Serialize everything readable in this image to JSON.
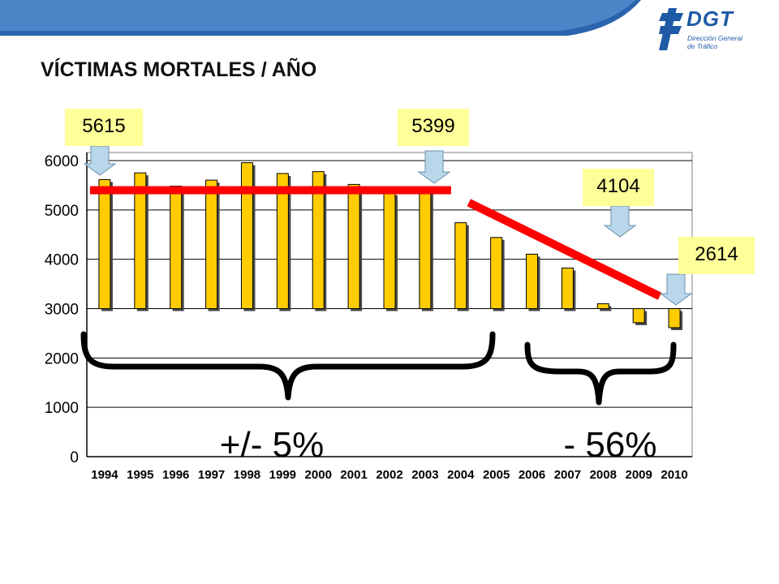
{
  "page": {
    "title": "VÍCTIMAS MORTALES / AÑO",
    "logo": {
      "name": "DGT",
      "line1": "Dirección General",
      "line2": "de Tráfico"
    }
  },
  "callouts": [
    "5615",
    "5399",
    "4104",
    "2614"
  ],
  "annotations": {
    "left_range": "+/- 5%",
    "right_range": "- 56%"
  },
  "colors": {
    "bar": "#ffcc00",
    "trend": "#ff0000",
    "arrow": "#b9d7ea",
    "callout_bg": "#ffff99",
    "brand": "#1f5aa6"
  },
  "chart_data": {
    "type": "bar",
    "title": "VÍCTIMAS MORTALES / AÑO",
    "xlabel": "",
    "ylabel": "",
    "ylim": [
      0,
      6000
    ],
    "yticks": [
      0,
      1000,
      2000,
      3000,
      4000,
      5000,
      6000
    ],
    "bar_baseline": 3000,
    "categories": [
      "1994",
      "1995",
      "1996",
      "1997",
      "1998",
      "1999",
      "2000",
      "2001",
      "2002",
      "2003",
      "2004",
      "2005",
      "2006",
      "2007",
      "2008",
      "2009",
      "2010"
    ],
    "values": [
      5615,
      5751,
      5483,
      5604,
      5957,
      5738,
      5776,
      5517,
      5347,
      5399,
      4741,
      4442,
      4104,
      3823,
      3100,
      2714,
      2614
    ],
    "grid": true,
    "trend_lines": [
      {
        "from": [
          "1994",
          5399
        ],
        "to": [
          "2003",
          5399
        ]
      },
      {
        "from": [
          "2004",
          5150
        ],
        "to": [
          "2010",
          3250
        ]
      }
    ]
  }
}
